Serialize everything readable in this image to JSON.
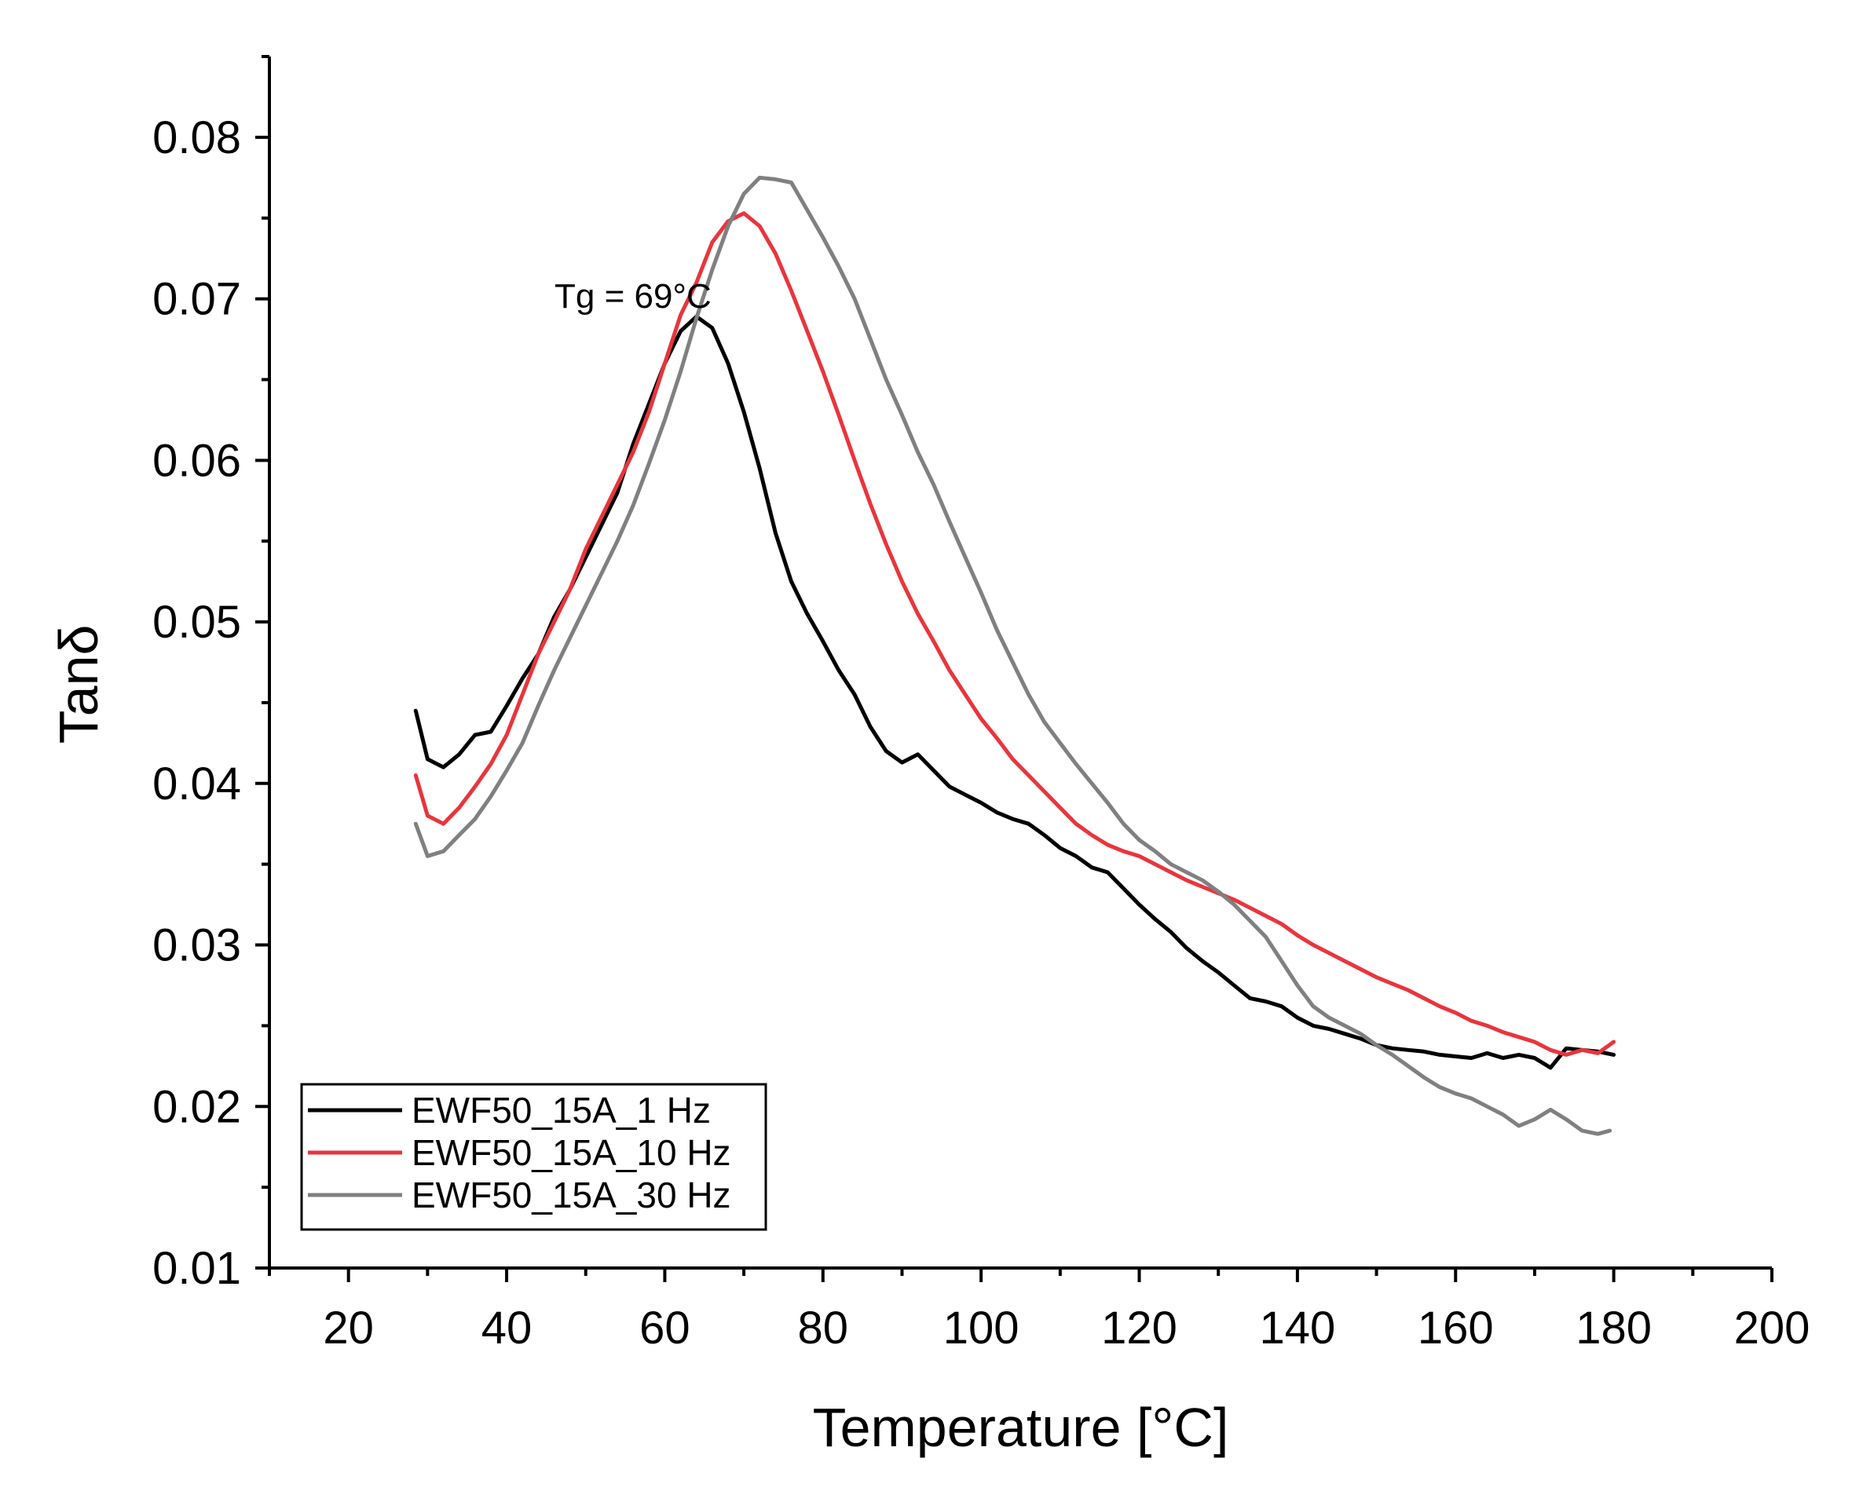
{
  "chart_data": {
    "type": "line",
    "title": "",
    "xlabel": "Temperature [°C]",
    "ylabel": "Tanδ",
    "xlim": [
      10,
      200
    ],
    "ylim": [
      0.01,
      0.085
    ],
    "x_ticks": [
      20,
      40,
      60,
      80,
      100,
      120,
      140,
      160,
      180,
      200
    ],
    "x_tick_labels": [
      "20",
      "40",
      "60",
      "80",
      "100",
      "120",
      "140",
      "160",
      "180",
      "200"
    ],
    "y_ticks": [
      0.01,
      0.02,
      0.03,
      0.04,
      0.05,
      0.06,
      0.07,
      0.08
    ],
    "y_tick_labels": [
      "0.01",
      "0.02",
      "0.03",
      "0.04",
      "0.05",
      "0.06",
      "0.07",
      "0.08"
    ],
    "grid": false,
    "legend_position": "bottom-left",
    "annotations": [
      {
        "text": "Tg = 69°C",
        "x": 62.5,
        "y": 0.07
      }
    ],
    "series": [
      {
        "name": "EWF50_15A_1 Hz",
        "color": "#000000",
        "x": [
          28.5,
          30,
          32,
          34,
          36,
          38,
          40,
          42,
          44,
          46,
          48,
          50,
          52,
          54,
          56,
          58,
          60,
          62,
          64,
          66,
          68,
          70,
          72,
          74,
          76,
          78,
          80,
          82,
          84,
          86,
          88,
          90,
          92,
          94,
          96,
          98,
          100,
          102,
          104,
          106,
          108,
          110,
          112,
          114,
          116,
          118,
          120,
          122,
          124,
          126,
          128,
          130,
          132,
          134,
          136,
          138,
          140,
          142,
          144,
          146,
          148,
          150,
          152,
          154,
          156,
          158,
          160,
          162,
          164,
          166,
          168,
          170,
          172,
          174,
          176,
          178,
          180
        ],
        "values": [
          0.0445,
          0.0415,
          0.041,
          0.0418,
          0.043,
          0.0432,
          0.0448,
          0.0465,
          0.048,
          0.0503,
          0.052,
          0.054,
          0.056,
          0.058,
          0.061,
          0.0635,
          0.066,
          0.068,
          0.0689,
          0.0682,
          0.066,
          0.063,
          0.0595,
          0.0555,
          0.0525,
          0.0505,
          0.0488,
          0.047,
          0.0455,
          0.0435,
          0.042,
          0.0413,
          0.0418,
          0.0408,
          0.0398,
          0.0393,
          0.0388,
          0.0382,
          0.0378,
          0.0375,
          0.0368,
          0.036,
          0.0355,
          0.0348,
          0.0345,
          0.0335,
          0.0325,
          0.0316,
          0.0308,
          0.0298,
          0.029,
          0.0283,
          0.0275,
          0.0267,
          0.0265,
          0.0262,
          0.0255,
          0.025,
          0.0248,
          0.0245,
          0.0242,
          0.0238,
          0.0236,
          0.0235,
          0.0234,
          0.0232,
          0.0231,
          0.023,
          0.0233,
          0.023,
          0.0232,
          0.023,
          0.0224,
          0.0236,
          0.0235,
          0.0234,
          0.0232
        ]
      },
      {
        "name": "EWF50_15A_10 Hz",
        "color": "#e8353d",
        "x": [
          28.5,
          30,
          32,
          34,
          36,
          38,
          40,
          42,
          44,
          46,
          48,
          50,
          52,
          54,
          56,
          58,
          60,
          62,
          64,
          66,
          68,
          70,
          72,
          74,
          76,
          78,
          80,
          82,
          84,
          86,
          88,
          90,
          92,
          94,
          96,
          98,
          100,
          102,
          104,
          106,
          108,
          110,
          112,
          114,
          116,
          118,
          120,
          122,
          124,
          126,
          128,
          130,
          132,
          134,
          136,
          138,
          140,
          142,
          144,
          146,
          148,
          150,
          152,
          154,
          156,
          158,
          160,
          162,
          164,
          166,
          168,
          170,
          172,
          174,
          176,
          178,
          180
        ],
        "values": [
          0.0405,
          0.038,
          0.0375,
          0.0385,
          0.0398,
          0.0412,
          0.043,
          0.0455,
          0.048,
          0.05,
          0.052,
          0.0545,
          0.0565,
          0.0585,
          0.0605,
          0.063,
          0.066,
          0.069,
          0.071,
          0.0735,
          0.0748,
          0.0753,
          0.0745,
          0.0728,
          0.0705,
          0.068,
          0.0655,
          0.0628,
          0.06,
          0.0573,
          0.0548,
          0.0525,
          0.0505,
          0.0488,
          0.047,
          0.0455,
          0.044,
          0.0428,
          0.0415,
          0.0405,
          0.0395,
          0.0385,
          0.0375,
          0.0368,
          0.0362,
          0.0358,
          0.0355,
          0.035,
          0.0345,
          0.034,
          0.0336,
          0.0332,
          0.0328,
          0.0323,
          0.0318,
          0.0313,
          0.0306,
          0.03,
          0.0295,
          0.029,
          0.0285,
          0.028,
          0.0276,
          0.0272,
          0.0267,
          0.0262,
          0.0258,
          0.0253,
          0.025,
          0.0246,
          0.0243,
          0.024,
          0.0235,
          0.0232,
          0.0235,
          0.0233,
          0.024
        ]
      },
      {
        "name": "EWF50_15A_30 Hz",
        "color": "#808080",
        "x": [
          28.5,
          30,
          32,
          34,
          36,
          38,
          40,
          42,
          44,
          46,
          48,
          50,
          52,
          54,
          56,
          58,
          60,
          62,
          64,
          66,
          68,
          70,
          72,
          74,
          76,
          78,
          80,
          82,
          84,
          86,
          88,
          90,
          92,
          94,
          96,
          98,
          100,
          102,
          104,
          106,
          108,
          110,
          112,
          114,
          116,
          118,
          120,
          122,
          124,
          126,
          128,
          130,
          132,
          134,
          136,
          138,
          140,
          142,
          144,
          146,
          148,
          150,
          152,
          154,
          156,
          158,
          160,
          162,
          164,
          166,
          168,
          170,
          172,
          174,
          176,
          178,
          179.5
        ],
        "values": [
          0.0375,
          0.0355,
          0.0358,
          0.0368,
          0.0378,
          0.0392,
          0.0408,
          0.0425,
          0.0448,
          0.047,
          0.049,
          0.051,
          0.053,
          0.055,
          0.0572,
          0.0598,
          0.0625,
          0.0655,
          0.0688,
          0.0718,
          0.0745,
          0.0765,
          0.0775,
          0.0774,
          0.0772,
          0.0755,
          0.0738,
          0.072,
          0.07,
          0.0675,
          0.065,
          0.0628,
          0.0605,
          0.0585,
          0.0562,
          0.054,
          0.0518,
          0.0495,
          0.0475,
          0.0455,
          0.0438,
          0.0425,
          0.0412,
          0.04,
          0.0388,
          0.0375,
          0.0365,
          0.0358,
          0.035,
          0.0345,
          0.034,
          0.0333,
          0.0325,
          0.0315,
          0.0305,
          0.029,
          0.0275,
          0.0262,
          0.0255,
          0.025,
          0.0245,
          0.0238,
          0.0232,
          0.0225,
          0.0218,
          0.0212,
          0.0208,
          0.0205,
          0.02,
          0.0195,
          0.0188,
          0.0192,
          0.0198,
          0.0192,
          0.0185,
          0.0183,
          0.0185
        ]
      }
    ]
  }
}
